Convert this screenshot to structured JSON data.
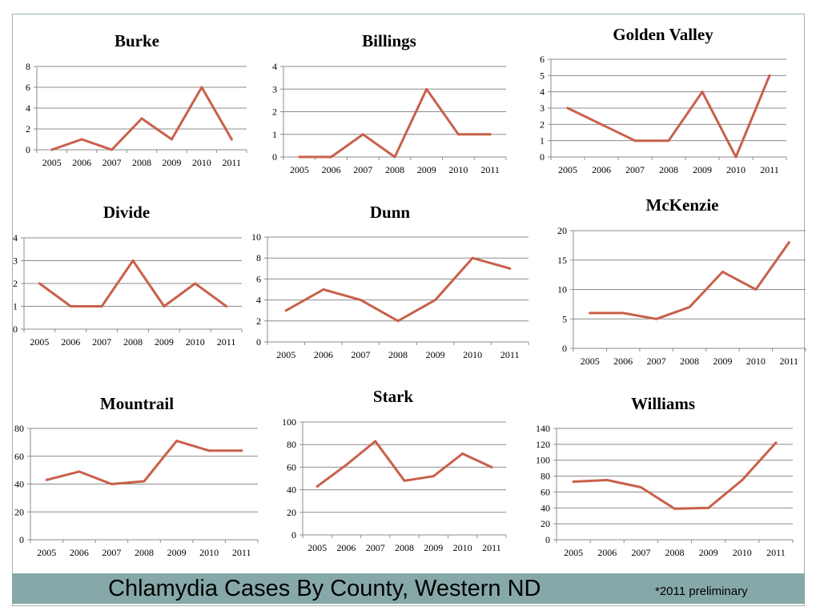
{
  "footer": {
    "title": "Chlamydia Cases By County, Western ND",
    "note": "*2011 preliminary"
  },
  "colors": {
    "line": "#c9604a",
    "grid": "#8c8c8c",
    "axis": "#8c8c8c",
    "band": "#86a8a8"
  },
  "chart_data": [
    {
      "type": "line",
      "title": "Burke",
      "categories": [
        "2005",
        "2006",
        "2007",
        "2008",
        "2009",
        "2010",
        "2011"
      ],
      "values": [
        0,
        1,
        0,
        3,
        1,
        6,
        1
      ],
      "ylim": [
        0,
        8
      ],
      "yticks": [
        0,
        2,
        4,
        6,
        8
      ],
      "grid": true
    },
    {
      "type": "line",
      "title": "Billings",
      "categories": [
        "2005",
        "2006",
        "2007",
        "2008",
        "2009",
        "2010",
        "2011"
      ],
      "values": [
        0,
        0,
        1,
        0,
        3,
        1,
        1
      ],
      "ylim": [
        0,
        4
      ],
      "yticks": [
        0,
        1,
        2,
        3,
        4
      ],
      "grid": true
    },
    {
      "type": "line",
      "title": "Golden Valley",
      "categories": [
        "2005",
        "2006",
        "2007",
        "2008",
        "2009",
        "2010",
        "2011"
      ],
      "values": [
        3,
        2,
        1,
        1,
        4,
        0,
        5
      ],
      "ylim": [
        0,
        6
      ],
      "yticks": [
        0,
        1,
        2,
        3,
        4,
        5,
        6
      ],
      "grid": true
    },
    {
      "type": "line",
      "title": "Divide",
      "categories": [
        "2005",
        "2006",
        "2007",
        "2008",
        "2009",
        "2010",
        "2011"
      ],
      "values": [
        2,
        1,
        1,
        3,
        1,
        2,
        1
      ],
      "ylim": [
        0,
        4
      ],
      "yticks": [
        0,
        1,
        2,
        3,
        4
      ],
      "grid": true
    },
    {
      "type": "line",
      "title": "Dunn",
      "categories": [
        "2005",
        "2006",
        "2007",
        "2008",
        "2009",
        "2010",
        "2011"
      ],
      "values": [
        3,
        5,
        4,
        2,
        4,
        8,
        7
      ],
      "ylim": [
        0,
        10
      ],
      "yticks": [
        0,
        2,
        4,
        6,
        8,
        10
      ],
      "grid": true
    },
    {
      "type": "line",
      "title": "McKenzie",
      "categories": [
        "2005",
        "2006",
        "2007",
        "2008",
        "2009",
        "2010",
        "2011"
      ],
      "values": [
        6,
        6,
        5,
        7,
        13,
        10,
        18
      ],
      "ylim": [
        0,
        20
      ],
      "yticks": [
        0,
        5,
        10,
        15,
        20
      ],
      "grid": true
    },
    {
      "type": "line",
      "title": "Mountrail",
      "categories": [
        "2005",
        "2006",
        "2007",
        "2008",
        "2009",
        "2010",
        "2011"
      ],
      "values": [
        43,
        49,
        40,
        42,
        71,
        64,
        64
      ],
      "ylim": [
        0,
        80
      ],
      "yticks": [
        0,
        20,
        40,
        60,
        80
      ],
      "grid": true
    },
    {
      "type": "line",
      "title": "Stark",
      "categories": [
        "2005",
        "2006",
        "2007",
        "2008",
        "2009",
        "2010",
        "2011"
      ],
      "values": [
        43,
        62,
        83,
        48,
        52,
        72,
        60
      ],
      "ylim": [
        0,
        100
      ],
      "yticks": [
        0,
        20,
        40,
        60,
        80,
        100
      ],
      "grid": true
    },
    {
      "type": "line",
      "title": "Williams",
      "categories": [
        "2005",
        "2006",
        "2007",
        "2008",
        "2009",
        "2010",
        "2011"
      ],
      "values": [
        73,
        75,
        66,
        39,
        40,
        75,
        122
      ],
      "ylim": [
        0,
        140
      ],
      "yticks": [
        0,
        20,
        40,
        60,
        80,
        100,
        120,
        140
      ],
      "grid": true
    }
  ]
}
